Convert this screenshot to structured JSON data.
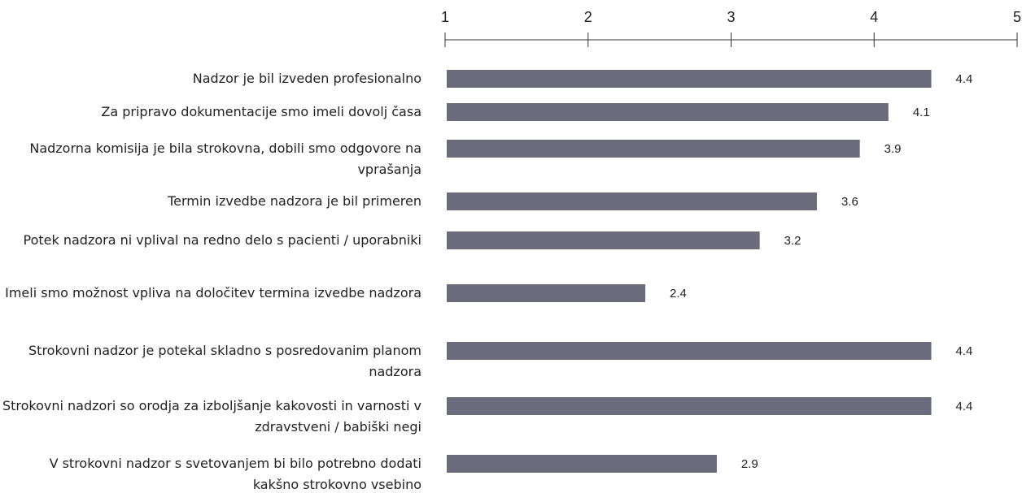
{
  "chart_data": {
    "type": "bar",
    "orientation": "horizontal",
    "categories": [
      "Nadzor je bil izveden profesionalno",
      "Za pripravo dokumentacije smo imeli dovolj časa",
      "Nadzorna komisija je bila strokovna, dobili smo odgovore na vprašanja",
      "Termin izvedbe nadzora je bil primeren",
      "Potek nadzora ni vplival na redno delo  s pacienti / uporabniki",
      "Imeli smo možnost vpliva na določitev termina izvedbe nadzora",
      "Strokovni nadzor je potekal skladno s posredovanim planom nadzora",
      "Strokovni nadzori so orodja za izboljšanje kakovosti in varnosti v zdravstveni / babiški negi",
      "V strokovni nadzor s svetovanjem bi bilo potrebno dodati kakšno strokovno vsebino"
    ],
    "values": [
      4.4,
      4.1,
      3.9,
      3.6,
      3.2,
      2.4,
      4.4,
      4.4,
      2.9
    ],
    "color": "#6b6b7b",
    "xlim": [
      1,
      5
    ],
    "xticks": [
      1,
      2,
      3,
      4,
      5
    ]
  }
}
